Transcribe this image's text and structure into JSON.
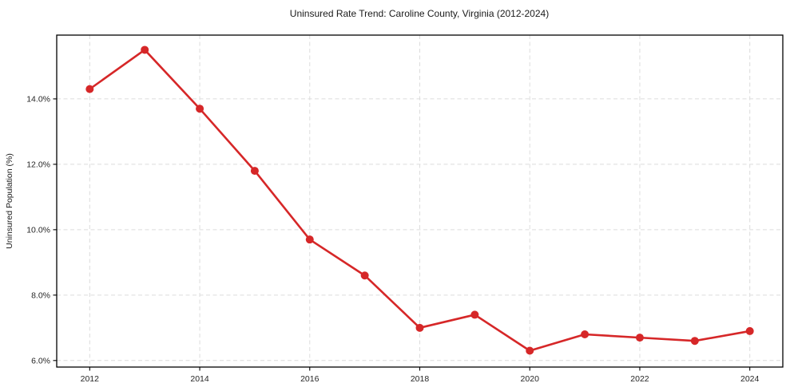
{
  "chart_data": {
    "type": "line",
    "title": "Uninsured Rate Trend: Caroline County, Virginia (2012-2024)",
    "xlabel": "",
    "ylabel": "Uninsured Population (%)",
    "x": [
      2012,
      2013,
      2014,
      2015,
      2016,
      2017,
      2018,
      2019,
      2020,
      2021,
      2022,
      2023,
      2024
    ],
    "values": [
      14.3,
      15.5,
      13.7,
      11.8,
      9.7,
      8.6,
      7.0,
      7.4,
      6.3,
      6.8,
      6.7,
      6.6,
      6.9
    ],
    "xlim": [
      2011.4,
      2024.6
    ],
    "ylim": [
      5.8,
      15.95
    ],
    "x_tick_values": [
      2012,
      2014,
      2016,
      2018,
      2020,
      2022,
      2024
    ],
    "x_tick_labels": [
      "2012",
      "2014",
      "2016",
      "2018",
      "2020",
      "2022",
      "2024"
    ],
    "y_tick_values": [
      6,
      8,
      10,
      12,
      14
    ],
    "y_tick_labels": [
      "6.0%",
      "8.0%",
      "10.0%",
      "12.0%",
      "14.0%"
    ],
    "grid": true,
    "grid_style": "dashed",
    "legend": "none",
    "line_color": "#d62728",
    "marker_color": "#d62728",
    "marker": "circle",
    "grid_color": "#dcdcdc",
    "spine_color": "#000000",
    "text_color": "#1a1a1a"
  }
}
